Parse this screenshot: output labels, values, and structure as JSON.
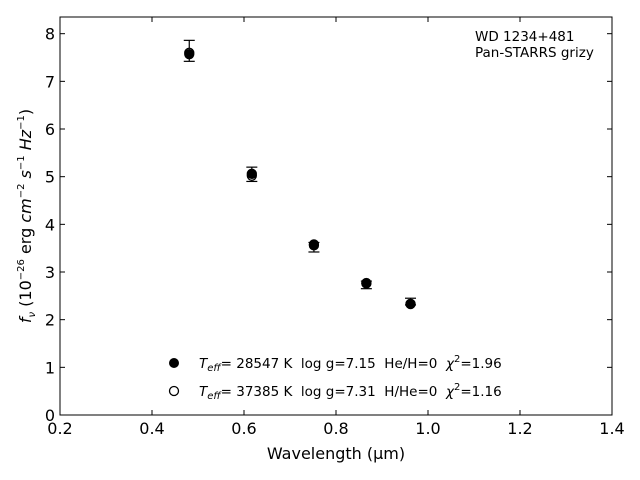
{
  "chart_data": {
    "type": "scatter",
    "xlabel": "Wavelength (μm)",
    "ylabel_parts": {
      "f": "f",
      "nu": "ν",
      "open": " (10",
      "exp": "−26",
      "mid": " erg ",
      "cm": "cm",
      "cmexp": "−2",
      "s": " s",
      "sexp": "−1",
      "hz": " Hz",
      "hzexp": "−1",
      "close": ")"
    },
    "xlim": [
      0.2,
      1.4
    ],
    "ylim": [
      0,
      8.35
    ],
    "xticks": [
      "0.2",
      "0.4",
      "0.6",
      "0.8",
      "1.0",
      "1.2",
      "1.4"
    ],
    "xtick_values": [
      0.2,
      0.4,
      0.6,
      0.8,
      1.0,
      1.2,
      1.4
    ],
    "yticks": [
      "0",
      "1",
      "2",
      "3",
      "4",
      "5",
      "6",
      "7",
      "8"
    ],
    "ytick_values": [
      0,
      1,
      2,
      3,
      4,
      5,
      6,
      7,
      8
    ],
    "annotation": {
      "line1": "WD 1234+481",
      "line2": "Pan-STARRS grizy"
    },
    "observed": [
      {
        "x": 0.481,
        "y": 7.64,
        "err_lo": 0.22,
        "err_hi": 0.22
      },
      {
        "x": 0.617,
        "y": 5.05,
        "err_lo": 0.15,
        "err_hi": 0.15
      },
      {
        "x": 0.752,
        "y": 3.52,
        "err_lo": 0.1,
        "err_hi": 0.1
      },
      {
        "x": 0.866,
        "y": 2.73,
        "err_lo": 0.08,
        "err_hi": 0.08
      },
      {
        "x": 0.962,
        "y": 2.38,
        "err_lo": 0.07,
        "err_hi": 0.07
      }
    ],
    "series": [
      {
        "name": "He/H=0",
        "marker": "filled",
        "values": [
          {
            "x": 0.481,
            "y": 7.57
          },
          {
            "x": 0.617,
            "y": 5.06
          },
          {
            "x": 0.752,
            "y": 3.58
          },
          {
            "x": 0.866,
            "y": 2.77
          },
          {
            "x": 0.962,
            "y": 2.33
          }
        ],
        "legend": {
          "T": "T",
          "Tsub": "eff",
          "text": "= 28547 K  log g=7.15  He/H=0  ",
          "chi": "χ",
          "chiexp": "2",
          "chival": "=1.96"
        }
      },
      {
        "name": "H/He=0",
        "marker": "open",
        "values": [
          {
            "x": 0.481,
            "y": 7.6
          },
          {
            "x": 0.617,
            "y": 5.02
          },
          {
            "x": 0.752,
            "y": 3.56
          },
          {
            "x": 0.866,
            "y": 2.76
          },
          {
            "x": 0.962,
            "y": 2.33
          }
        ],
        "legend": {
          "T": "T",
          "Tsub": "eff",
          "text": "= 37385 K  log g=7.31  H/He=0  ",
          "chi": "χ",
          "chiexp": "2",
          "chival": "=1.16"
        }
      }
    ],
    "colors": {
      "marker": "#000000",
      "axes": "#000000",
      "background": "#ffffff"
    }
  }
}
